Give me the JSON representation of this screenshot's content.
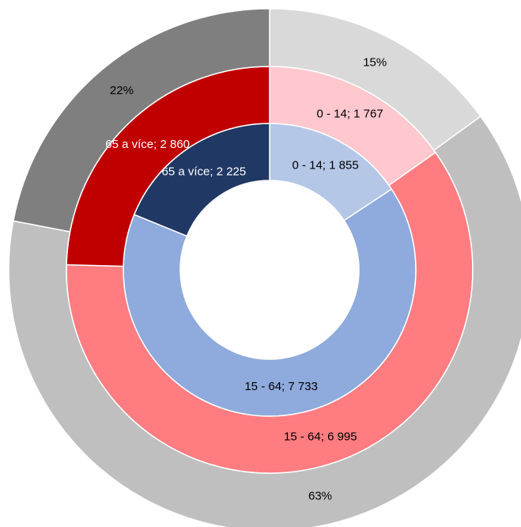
{
  "chart_data": {
    "type": "multi-donut",
    "rings": [
      {
        "values": [
          1855,
          7733,
          2225
        ],
        "value_labels": [
          "0 - 14; 1 855",
          "15 - 64; 7 733",
          "65 a více; 2 225"
        ],
        "colors": [
          "#b4c7e7",
          "#8faadc",
          "#1f3864"
        ]
      },
      {
        "values": [
          1767,
          6995,
          2860
        ],
        "value_labels": [
          "0 - 14; 1 767",
          "15 - 64; 6 995",
          "65 a více; 2 860"
        ],
        "colors": [
          "#ffc7ce",
          "#ff7c80",
          "#c00000"
        ]
      },
      {
        "values": [
          15,
          63,
          22
        ],
        "value_labels": [
          "15%",
          "63%",
          "22%"
        ],
        "colors": [
          "#d9d9d9",
          "#bfbfbf",
          "#7f7f7f"
        ]
      }
    ]
  }
}
